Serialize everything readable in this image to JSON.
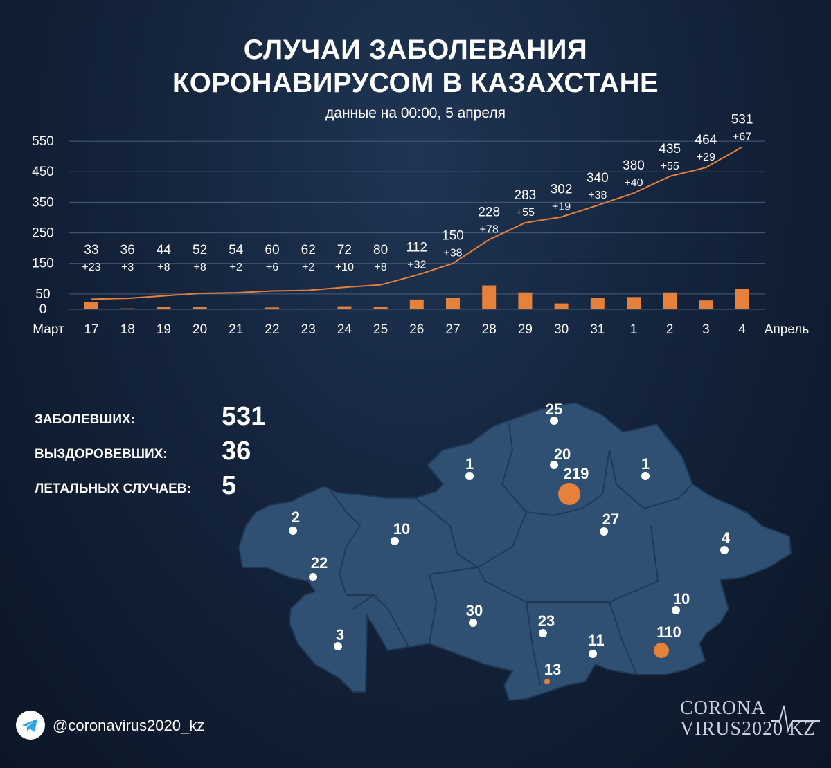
{
  "header": {
    "title_line1": "СЛУЧАИ ЗАБОЛЕВАНИЯ",
    "title_line2": "КОРОНАВИРУСОМ В КАЗАХСТАНЕ",
    "subtitle": "данные на 00:00, 5 апреля"
  },
  "chart_data": {
    "type": "line+bar",
    "categories": [
      "17",
      "18",
      "19",
      "20",
      "21",
      "22",
      "23",
      "24",
      "25",
      "26",
      "27",
      "28",
      "29",
      "30",
      "31",
      "1",
      "2",
      "3",
      "4"
    ],
    "x_start_label": "Март",
    "x_end_label": "Апрель",
    "y_ticks": [
      0,
      50,
      150,
      250,
      350,
      450,
      550
    ],
    "ylim": [
      0,
      570
    ],
    "grid": true,
    "series": [
      {
        "type": "line",
        "values": [
          33,
          36,
          44,
          52,
          54,
          60,
          62,
          72,
          80,
          112,
          150,
          228,
          283,
          302,
          340,
          380,
          435,
          464,
          531
        ]
      },
      {
        "type": "bar",
        "values": [
          23,
          3,
          8,
          8,
          2,
          6,
          2,
          10,
          8,
          32,
          38,
          78,
          55,
          19,
          38,
          40,
          55,
          29,
          67
        ],
        "labels": [
          "+23",
          "+3",
          "+8",
          "+8",
          "+2",
          "+6",
          "+2",
          "+10",
          "+8",
          "+32",
          "+38",
          "+78",
          "+55",
          "+19",
          "+38",
          "+40",
          "+55",
          "+29",
          "+67"
        ]
      }
    ],
    "colors": {
      "line": "#e5813a",
      "bar": "#e5813a",
      "grid": "#4a5d78"
    }
  },
  "stats": [
    {
      "label": "ЗАБОЛЕВШИХ:",
      "value": "531"
    },
    {
      "label": "ВЫЗДОРОВЕВШИХ:",
      "value": "36"
    },
    {
      "label": "ЛЕТАЛЬНЫХ СЛУЧАЕВ:",
      "value": "5"
    }
  ],
  "map": {
    "fill": "#2f5072",
    "regions": [
      "25",
      "20",
      "219",
      "1",
      "1",
      "27",
      "2",
      "10",
      "4",
      "22",
      "10",
      "30",
      "23",
      "110",
      "3",
      "11",
      "13"
    ]
  },
  "footer": {
    "telegram": "@coronavirus2020_kz",
    "brand_line1": "CORONA",
    "brand_line2": "VIRUS2020 KZ"
  }
}
